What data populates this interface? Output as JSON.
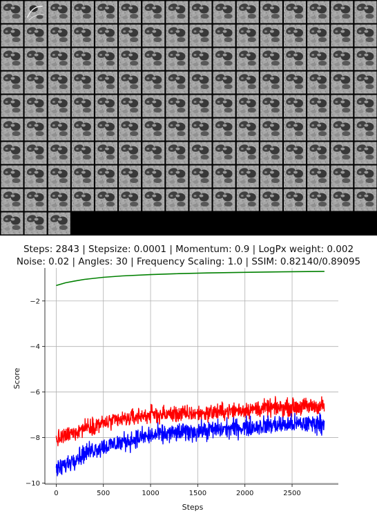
{
  "image_grid": {
    "columns": 16,
    "tile_count": 147,
    "last_tile_variant": 1,
    "background_color": "#000000"
  },
  "chart_data": {
    "type": "line",
    "title_lines": [
      "Steps: 2843 | Stepsize: 0.0001 | Momentum: 0.9 | LogPx weight: 0.002",
      "Noise: 0.02 | Angles: 30 | Frequency Scaling: 1.0 | SSIM: 0.82140/0.89095"
    ],
    "xlabel": "Steps",
    "ylabel": "Score",
    "xlim": [
      -120,
      2990
    ],
    "ylim": [
      -10.05,
      -0.55
    ],
    "xticks": [
      0,
      500,
      1000,
      1500,
      2000,
      2500
    ],
    "xtick_labels": [
      "0",
      "500",
      "1000",
      "1500",
      "2000",
      "2500"
    ],
    "yticks": [
      -10,
      -8,
      -6,
      -4,
      -2
    ],
    "ytick_labels": [
      "−10",
      "−8",
      "−6",
      "−4",
      "−2"
    ],
    "grid": true,
    "series": [
      {
        "color": "#008000",
        "noisy": false,
        "x": [
          0,
          100,
          200,
          300,
          500,
          700,
          1000,
          1300,
          1600,
          2000,
          2400,
          2843
        ],
        "y": [
          -1.32,
          -1.2,
          -1.12,
          -1.05,
          -0.96,
          -0.9,
          -0.84,
          -0.8,
          -0.77,
          -0.74,
          -0.72,
          -0.7
        ]
      },
      {
        "color": "#ff0000",
        "noisy": true,
        "noise_amplitude": 0.18,
        "x": [
          0,
          100,
          200,
          300,
          400,
          500,
          700,
          900,
          1000,
          1200,
          1500,
          1800,
          2000,
          2300,
          2500,
          2843
        ],
        "y": [
          -8.1,
          -7.95,
          -7.75,
          -7.55,
          -7.45,
          -7.38,
          -7.22,
          -7.05,
          -7.0,
          -6.98,
          -6.95,
          -6.85,
          -6.78,
          -6.7,
          -6.67,
          -6.6
        ]
      },
      {
        "color": "#0000ff",
        "noisy": true,
        "noise_amplitude": 0.2,
        "x": [
          0,
          100,
          200,
          300,
          400,
          500,
          700,
          900,
          1000,
          1200,
          1500,
          1800,
          2000,
          2300,
          2500,
          2843
        ],
        "y": [
          -9.45,
          -9.2,
          -8.9,
          -8.7,
          -8.5,
          -8.42,
          -8.2,
          -8.0,
          -7.92,
          -7.82,
          -7.72,
          -7.62,
          -7.55,
          -7.45,
          -7.42,
          -7.38
        ]
      }
    ]
  }
}
